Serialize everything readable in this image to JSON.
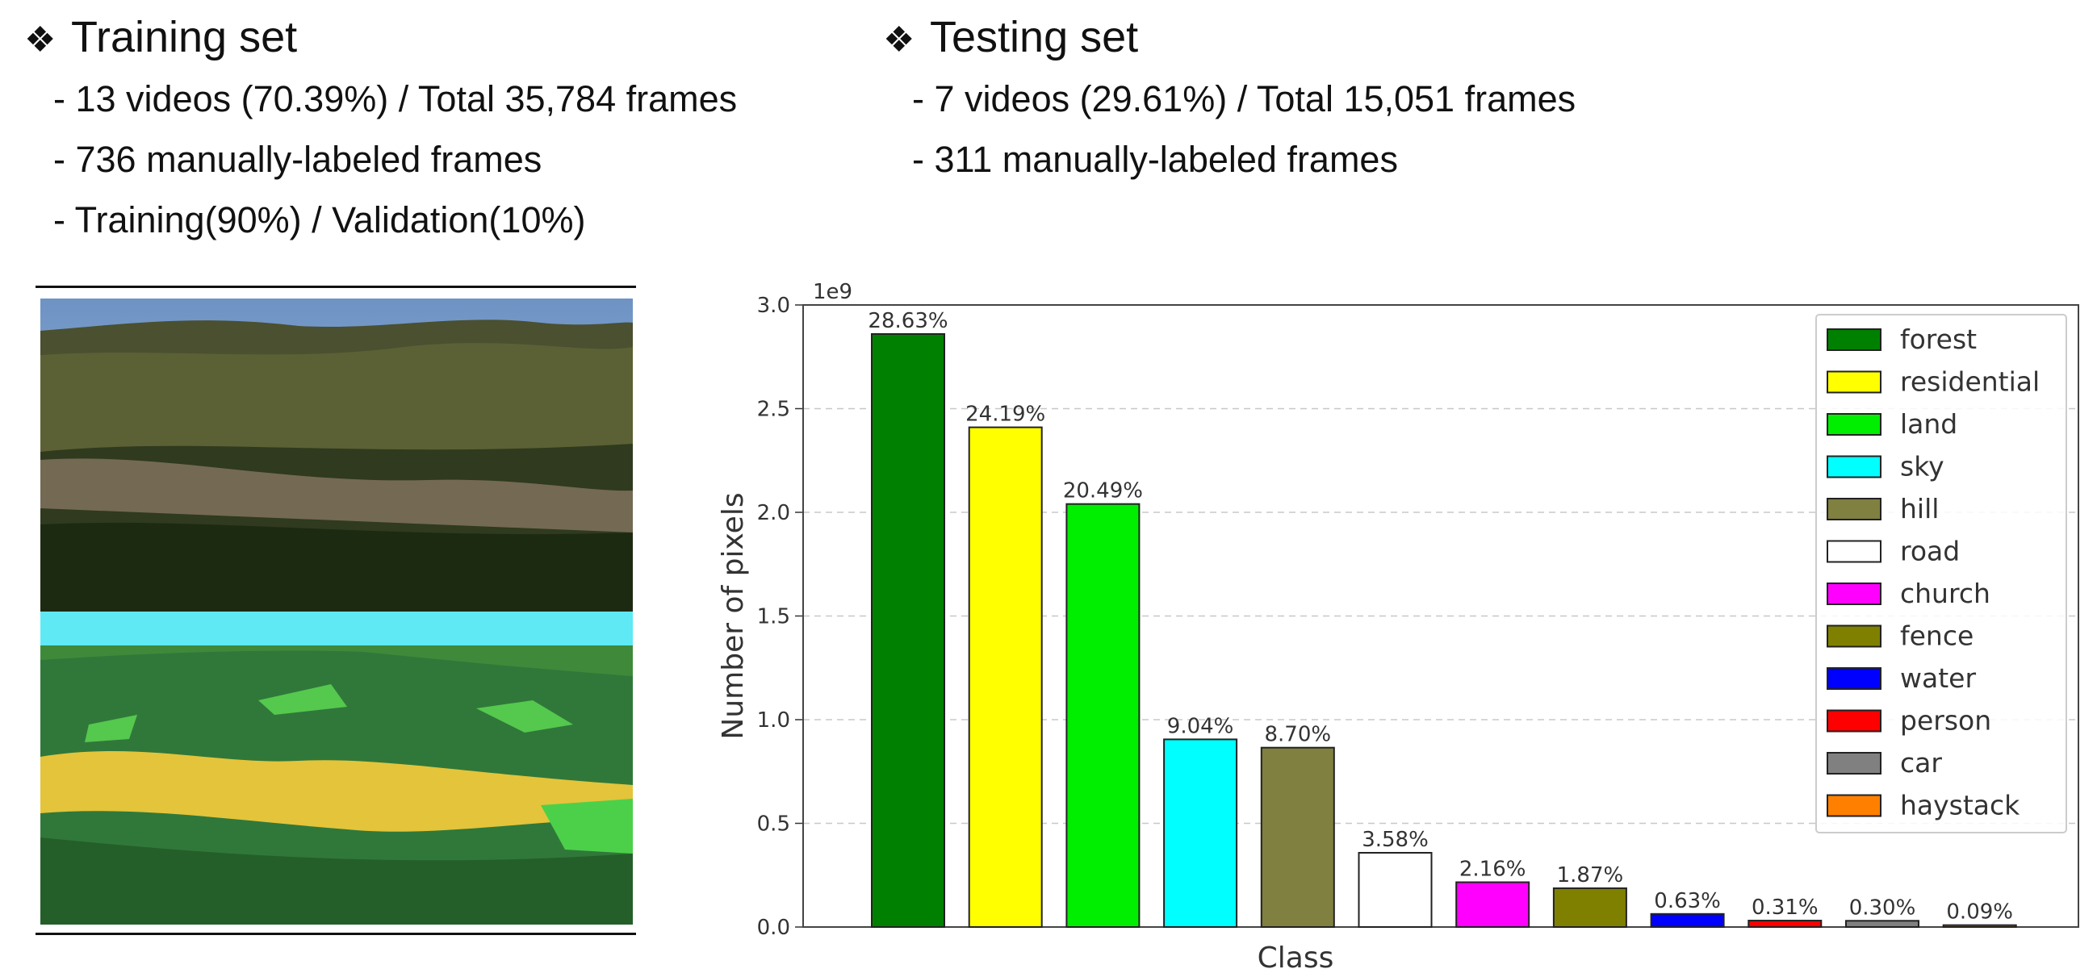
{
  "training": {
    "heading": "Training set",
    "bullets": [
      "- 13 videos (70.39%) / Total 35,784 frames",
      "- 736 manually-labeled frames",
      "- Training(90%) / Validation(10%)"
    ]
  },
  "testing": {
    "heading": "Testing set",
    "bullets": [
      "- 7 videos (29.61%) / Total 15,051 frames",
      "- 311 manually-labeled frames"
    ]
  },
  "diamond_glyph": "❖",
  "chart_data": {
    "type": "bar",
    "xlabel": "Class",
    "ylabel": "Number of pixels",
    "scale_label": "1e9",
    "ylim": [
      0,
      3.0
    ],
    "yticks": [
      "0.0",
      "0.5",
      "1.0",
      "1.5",
      "2.0",
      "2.5",
      "3.0"
    ],
    "grid": "horizontal dashed",
    "legend_position": "top-right",
    "categories": [
      "forest",
      "residential",
      "land",
      "sky",
      "hill",
      "road",
      "church",
      "fence",
      "water",
      "person",
      "car",
      "haystack"
    ],
    "values": [
      2.86,
      2.41,
      2.04,
      0.905,
      0.865,
      0.358,
      0.216,
      0.187,
      0.063,
      0.031,
      0.03,
      0.009
    ],
    "labels": [
      "28.63%",
      "24.19%",
      "20.49%",
      "9.04%",
      "8.70%",
      "3.58%",
      "2.16%",
      "1.87%",
      "0.63%",
      "0.31%",
      "0.30%",
      "0.09%"
    ],
    "colors": [
      "#008000",
      "#ffff00",
      "#00ee00",
      "#00ffff",
      "#808040",
      "#ffffff",
      "#ff00ff",
      "#808000",
      "#0000ff",
      "#ff0000",
      "#808080",
      "#ff8000"
    ]
  }
}
